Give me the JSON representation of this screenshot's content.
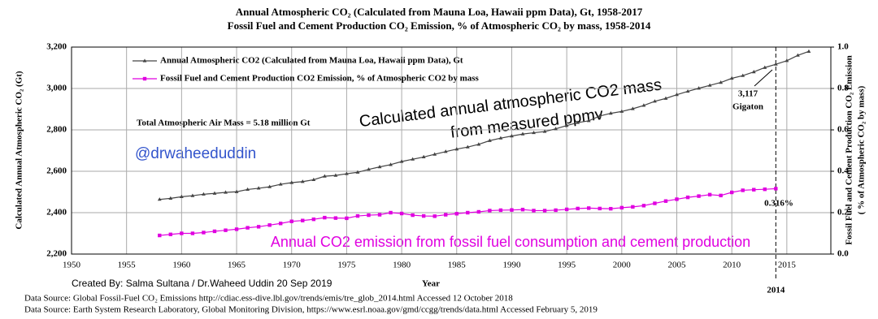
{
  "chart_data": {
    "type": "line",
    "title": "Annual Atmospheric CO₂ (Calculated from Mauna Loa, Hawaii ppm Data), Gt, 1958-2017",
    "subtitle": "Fossil Fuel and Cement Production CO₂ Emission, % of Atmospheric CO₂ by mass, 1958-2014",
    "x_label": "Year",
    "y_label": "Calculated Annual Atmospheric CO₂ (Gt)",
    "y2_label": [
      "Fossil Fuel and Cement Production CO₂ Emission",
      "( % of Atmospheric CO₂ by mass)"
    ],
    "xlim": [
      1950,
      2019
    ],
    "xticks": [
      1950,
      1955,
      1960,
      1965,
      1970,
      1975,
      1980,
      1985,
      1990,
      1995,
      2000,
      2005,
      2010,
      2015
    ],
    "ylim": [
      2200,
      3200
    ],
    "yticks": [
      {
        "value": 2200,
        "label": "2,200"
      },
      {
        "value": 2400,
        "label": "2,400"
      },
      {
        "value": 2600,
        "label": "2,600"
      },
      {
        "value": 2800,
        "label": "2,800"
      },
      {
        "value": 3000,
        "label": "3,000"
      },
      {
        "value": 3200,
        "label": "3,200"
      }
    ],
    "y2lim": [
      0,
      1
    ],
    "y2ticks": [
      {
        "value": 0,
        "label": "0.0"
      },
      {
        "value": 0.2,
        "label": "0.2"
      },
      {
        "value": 0.4,
        "label": "0.4"
      },
      {
        "value": 0.6,
        "label": "0.6"
      },
      {
        "value": 0.8,
        "label": "0.8"
      },
      {
        "value": 1,
        "label": "1.0"
      }
    ],
    "grid": true,
    "legend": "top-left",
    "series": [
      {
        "name": "Annual Atmospheric CO2 (Calculated from Mauna Loa, Hawaii ppm Data),  Gt",
        "color": "#444444",
        "marker": "triangle",
        "x": [
          1958,
          1959,
          1960,
          1961,
          1962,
          1963,
          1964,
          1965,
          1966,
          1967,
          1968,
          1969,
          1970,
          1971,
          1972,
          1973,
          1974,
          1975,
          1976,
          1977,
          1978,
          1979,
          1980,
          1981,
          1982,
          1983,
          1984,
          1985,
          1986,
          1987,
          1988,
          1989,
          1990,
          1991,
          1992,
          1993,
          1994,
          1995,
          1996,
          1997,
          1998,
          1999,
          2000,
          2001,
          2002,
          2003,
          2004,
          2005,
          2006,
          2007,
          2008,
          2009,
          2010,
          2011,
          2012,
          2013,
          2014,
          2015,
          2016,
          2017
        ],
        "values": [
          2464,
          2469,
          2477,
          2482,
          2489,
          2493,
          2498,
          2501,
          2512,
          2518,
          2525,
          2537,
          2545,
          2550,
          2559,
          2576,
          2580,
          2588,
          2595,
          2609,
          2621,
          2632,
          2647,
          2658,
          2669,
          2682,
          2695,
          2707,
          2717,
          2730,
          2748,
          2760,
          2770,
          2780,
          2786,
          2792,
          2805,
          2821,
          2835,
          2844,
          2867,
          2880,
          2889,
          2902,
          2918,
          2938,
          2952,
          2970,
          2986,
          3001,
          3015,
          3029,
          3049,
          3062,
          3080,
          3101,
          3117,
          3134,
          3160,
          3179
        ]
      },
      {
        "name": "Fossil Fuel and Cement Production CO2 Emission, % of Atmospheric CO2 by mass",
        "color": "#e000e0",
        "marker": "square",
        "axis": "y2",
        "x": [
          1958,
          1959,
          1960,
          1961,
          1962,
          1963,
          1964,
          1965,
          1966,
          1967,
          1968,
          1969,
          1970,
          1971,
          1972,
          1973,
          1974,
          1975,
          1976,
          1977,
          1978,
          1979,
          1980,
          1981,
          1982,
          1983,
          1984,
          1985,
          1986,
          1987,
          1988,
          1989,
          1990,
          1991,
          1992,
          1993,
          1994,
          1995,
          1996,
          1997,
          1998,
          1999,
          2000,
          2001,
          2002,
          2003,
          2004,
          2005,
          2006,
          2007,
          2008,
          2009,
          2010,
          2011,
          2012,
          2013,
          2014
        ],
        "values": [
          0.09,
          0.095,
          0.1,
          0.1,
          0.104,
          0.11,
          0.115,
          0.12,
          0.127,
          0.132,
          0.14,
          0.148,
          0.158,
          0.162,
          0.168,
          0.176,
          0.174,
          0.173,
          0.184,
          0.188,
          0.19,
          0.2,
          0.196,
          0.188,
          0.184,
          0.183,
          0.19,
          0.195,
          0.2,
          0.204,
          0.21,
          0.212,
          0.213,
          0.215,
          0.21,
          0.21,
          0.212,
          0.216,
          0.22,
          0.222,
          0.22,
          0.219,
          0.224,
          0.228,
          0.234,
          0.245,
          0.256,
          0.265,
          0.274,
          0.28,
          0.287,
          0.283,
          0.298,
          0.308,
          0.311,
          0.313,
          0.316
        ]
      }
    ],
    "marker_year": 2014,
    "marker_year_label": "2014",
    "annotations": {
      "air_mass": "Total Atmospheric  Air Mass =  5.18 million  Gt",
      "handle": "@drwaheeduddin",
      "co2_mass": [
        "Calculated annual atmospheric CO2 mass",
        "from measured ppmv"
      ],
      "emission": "Annual CO2 emission from fossil fuel consumption and cement production",
      "co2_2014": [
        "3,117",
        "Gigaton"
      ],
      "pct_2014": "0.316%",
      "credit": "Created By: Salma Sultana / Dr.Waheed Uddin  20 Sep 2019",
      "sources": [
        "Data Source:  Global Fossil-Fuel CO₂ Emissions http://cdiac.ess-dive.lbl.gov/trends/emis/tre_glob_2014.html   Accessed  12 October 2018",
        "Data Source: Earth System Research Laboratory,  Global Monitoring Division, https://www.esrl.noaa.gov/gmd/ccgg/trends/data.html   Accessed  February 5, 2019"
      ]
    }
  }
}
